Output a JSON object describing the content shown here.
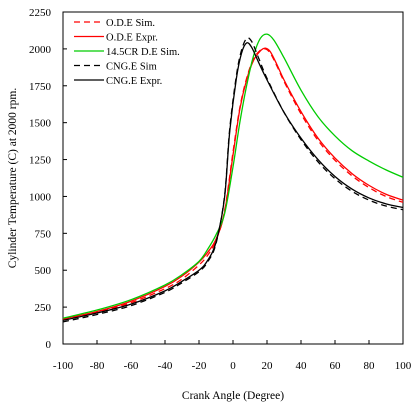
{
  "chart_data": {
    "type": "line",
    "title": "",
    "xlabel": "Crank Angle (Degree)",
    "ylabel": "Cylinder Temperature (C) at 2000 rpm.",
    "xlim": [
      -100,
      100
    ],
    "ylim": [
      0,
      2250
    ],
    "x_ticks": [
      -100,
      -80,
      -60,
      -40,
      -20,
      0,
      20,
      40,
      60,
      80,
      100
    ],
    "y_ticks": [
      0,
      250,
      500,
      750,
      1000,
      1250,
      1500,
      1750,
      2000,
      2250
    ],
    "grid": false,
    "legend_position": "top-left",
    "series": [
      {
        "name": "O.D.E Sim.",
        "color": "#ff0000",
        "dash": "dashed",
        "points": [
          [
            -100,
            165
          ],
          [
            -80,
            215
          ],
          [
            -60,
            280
          ],
          [
            -40,
            375
          ],
          [
            -30,
            440
          ],
          [
            -20,
            535
          ],
          [
            -15,
            600
          ],
          [
            -10,
            700
          ],
          [
            -5,
            900
          ],
          [
            0,
            1300
          ],
          [
            4,
            1600
          ],
          [
            8,
            1800
          ],
          [
            12,
            1930
          ],
          [
            16,
            1990
          ],
          [
            19,
            2000
          ],
          [
            22,
            1970
          ],
          [
            26,
            1880
          ],
          [
            30,
            1780
          ],
          [
            40,
            1560
          ],
          [
            50,
            1380
          ],
          [
            60,
            1245
          ],
          [
            70,
            1140
          ],
          [
            80,
            1060
          ],
          [
            90,
            1000
          ],
          [
            100,
            960
          ]
        ]
      },
      {
        "name": "O.D.E Expr.",
        "color": "#ff0000",
        "dash": "solid",
        "points": [
          [
            -100,
            170
          ],
          [
            -80,
            220
          ],
          [
            -60,
            290
          ],
          [
            -40,
            390
          ],
          [
            -30,
            460
          ],
          [
            -20,
            555
          ],
          [
            -15,
            620
          ],
          [
            -10,
            710
          ],
          [
            -5,
            890
          ],
          [
            0,
            1280
          ],
          [
            4,
            1590
          ],
          [
            8,
            1790
          ],
          [
            12,
            1920
          ],
          [
            16,
            1985
          ],
          [
            19,
            2005
          ],
          [
            22,
            1980
          ],
          [
            26,
            1890
          ],
          [
            30,
            1790
          ],
          [
            40,
            1575
          ],
          [
            50,
            1395
          ],
          [
            60,
            1260
          ],
          [
            70,
            1155
          ],
          [
            80,
            1075
          ],
          [
            90,
            1015
          ],
          [
            100,
            975
          ]
        ]
      },
      {
        "name": "14.5CR D.E Sim.",
        "color": "#00cc00",
        "dash": "solid",
        "points": [
          [
            -100,
            175
          ],
          [
            -80,
            230
          ],
          [
            -60,
            300
          ],
          [
            -40,
            400
          ],
          [
            -30,
            470
          ],
          [
            -20,
            560
          ],
          [
            -15,
            640
          ],
          [
            -10,
            740
          ],
          [
            -5,
            880
          ],
          [
            0,
            1200
          ],
          [
            4,
            1500
          ],
          [
            8,
            1750
          ],
          [
            12,
            1950
          ],
          [
            16,
            2070
          ],
          [
            20,
            2100
          ],
          [
            24,
            2060
          ],
          [
            30,
            1940
          ],
          [
            40,
            1720
          ],
          [
            50,
            1540
          ],
          [
            60,
            1410
          ],
          [
            70,
            1310
          ],
          [
            80,
            1240
          ],
          [
            90,
            1180
          ],
          [
            100,
            1130
          ]
        ]
      },
      {
        "name": "CNG.E Sim",
        "color": "#000000",
        "dash": "dashed",
        "points": [
          [
            -100,
            150
          ],
          [
            -80,
            200
          ],
          [
            -60,
            260
          ],
          [
            -40,
            350
          ],
          [
            -30,
            415
          ],
          [
            -20,
            490
          ],
          [
            -15,
            555
          ],
          [
            -10,
            680
          ],
          [
            -5,
            1000
          ],
          [
            -2,
            1450
          ],
          [
            2,
            1820
          ],
          [
            5,
            1990
          ],
          [
            8,
            2070
          ],
          [
            11,
            2050
          ],
          [
            15,
            1940
          ],
          [
            20,
            1800
          ],
          [
            30,
            1570
          ],
          [
            40,
            1385
          ],
          [
            50,
            1235
          ],
          [
            60,
            1120
          ],
          [
            70,
            1035
          ],
          [
            80,
            975
          ],
          [
            90,
            935
          ],
          [
            100,
            910
          ]
        ]
      },
      {
        "name": "CNG.E Expr.",
        "color": "#000000",
        "dash": "solid",
        "points": [
          [
            -100,
            160
          ],
          [
            -80,
            210
          ],
          [
            -60,
            270
          ],
          [
            -40,
            360
          ],
          [
            -30,
            425
          ],
          [
            -20,
            500
          ],
          [
            -15,
            565
          ],
          [
            -10,
            690
          ],
          [
            -5,
            990
          ],
          [
            -2,
            1430
          ],
          [
            2,
            1800
          ],
          [
            5,
            1970
          ],
          [
            8,
            2040
          ],
          [
            11,
            2010
          ],
          [
            15,
            1910
          ],
          [
            20,
            1790
          ],
          [
            30,
            1570
          ],
          [
            40,
            1395
          ],
          [
            50,
            1250
          ],
          [
            60,
            1135
          ],
          [
            70,
            1050
          ],
          [
            80,
            990
          ],
          [
            90,
            950
          ],
          [
            100,
            925
          ]
        ]
      }
    ]
  }
}
